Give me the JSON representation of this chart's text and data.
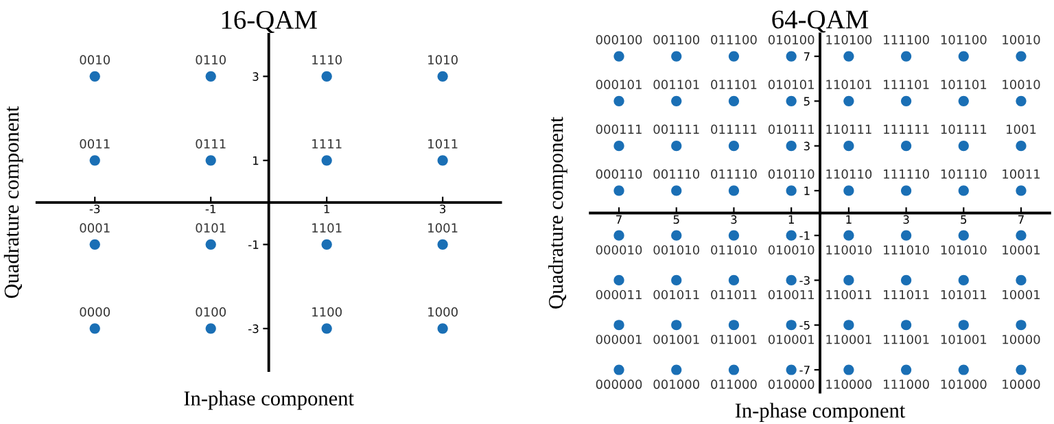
{
  "chart_data": [
    {
      "type": "scatter",
      "title": "16-QAM",
      "xlabel": "In-phase component",
      "ylabel": "Quadrature component",
      "marker": "circle",
      "grid": false,
      "xlim": [
        -4,
        4
      ],
      "ylim": [
        -4,
        4
      ],
      "xticks": [
        -3,
        -1,
        1,
        3
      ],
      "yticks": [
        -3,
        -1,
        1,
        3
      ],
      "series": [
        {
          "color": "#1a6fb5",
          "x": [
            -3,
            -1,
            1,
            3,
            -3,
            -1,
            1,
            3,
            -3,
            -1,
            1,
            3,
            -3,
            -1,
            1,
            3
          ],
          "values": [
            3,
            3,
            3,
            3,
            1,
            1,
            1,
            1,
            -1,
            -1,
            -1,
            -1,
            -3,
            -3,
            -3,
            -3
          ]
        }
      ],
      "annotations": [
        {
          "text": "0010",
          "x": -3,
          "y": 3
        },
        {
          "text": "0110",
          "x": -1,
          "y": 3
        },
        {
          "text": "1110",
          "x": 1,
          "y": 3
        },
        {
          "text": "1010",
          "x": 3,
          "y": 3
        },
        {
          "text": "0011",
          "x": -3,
          "y": 1
        },
        {
          "text": "0111",
          "x": -1,
          "y": 1
        },
        {
          "text": "1111",
          "x": 1,
          "y": 1
        },
        {
          "text": "1011",
          "x": 3,
          "y": 1
        },
        {
          "text": "0001",
          "x": -3,
          "y": -1
        },
        {
          "text": "0101",
          "x": -1,
          "y": -1
        },
        {
          "text": "1101",
          "x": 1,
          "y": -1
        },
        {
          "text": "1001",
          "x": 3,
          "y": -1
        },
        {
          "text": "0000",
          "x": -3,
          "y": -3
        },
        {
          "text": "0100",
          "x": -1,
          "y": -3
        },
        {
          "text": "1100",
          "x": 1,
          "y": -3
        },
        {
          "text": "1000",
          "x": 3,
          "y": -3
        }
      ]
    },
    {
      "type": "scatter",
      "title": "64-QAM",
      "xlabel": "In-phase component",
      "ylabel": "Quadrature component",
      "marker": "circle",
      "grid": false,
      "xlim": [
        -8,
        8
      ],
      "ylim": [
        -8,
        8
      ],
      "xticks": [
        {
          "value": -7,
          "label": "7"
        },
        {
          "value": -5,
          "label": "5"
        },
        {
          "value": -3,
          "label": "3"
        },
        {
          "value": -1,
          "label": "1"
        },
        1,
        3,
        5,
        7
      ],
      "yticks": [
        -7,
        -5,
        -3,
        -1,
        1,
        3,
        5,
        7
      ],
      "series": [
        {
          "color": "#1a6fb5",
          "x": [
            -7,
            -5,
            -3,
            -1,
            1,
            3,
            5,
            7,
            -7,
            -5,
            -3,
            -1,
            1,
            3,
            5,
            7,
            -7,
            -5,
            -3,
            -1,
            1,
            3,
            5,
            7,
            -7,
            -5,
            -3,
            -1,
            1,
            3,
            5,
            7,
            -7,
            -5,
            -3,
            -1,
            1,
            3,
            5,
            7,
            -7,
            -5,
            -3,
            -1,
            1,
            3,
            5,
            7,
            -7,
            -5,
            -3,
            -1,
            1,
            3,
            5,
            7,
            -7,
            -5,
            -3,
            -1,
            1,
            3,
            5,
            7
          ],
          "values": [
            7,
            7,
            7,
            7,
            7,
            7,
            7,
            7,
            5,
            5,
            5,
            5,
            5,
            5,
            5,
            5,
            3,
            3,
            3,
            3,
            3,
            3,
            3,
            3,
            1,
            1,
            1,
            1,
            1,
            1,
            1,
            1,
            -1,
            -1,
            -1,
            -1,
            -1,
            -1,
            -1,
            -1,
            -3,
            -3,
            -3,
            -3,
            -3,
            -3,
            -3,
            -3,
            -5,
            -5,
            -5,
            -5,
            -5,
            -5,
            -5,
            -5,
            -7,
            -7,
            -7,
            -7,
            -7,
            -7,
            -7,
            -7
          ]
        }
      ],
      "annotations": [
        {
          "text": "000100",
          "x": -7,
          "y": 7
        },
        {
          "text": "001100",
          "x": -5,
          "y": 7
        },
        {
          "text": "011100",
          "x": -3,
          "y": 7
        },
        {
          "text": "010100",
          "x": -1,
          "y": 7
        },
        {
          "text": "110100",
          "x": 1,
          "y": 7
        },
        {
          "text": "111100",
          "x": 3,
          "y": 7
        },
        {
          "text": "101100",
          "x": 5,
          "y": 7
        },
        {
          "text": "10010",
          "x": 7,
          "y": 7
        },
        {
          "text": "000101",
          "x": -7,
          "y": 5
        },
        {
          "text": "001101",
          "x": -5,
          "y": 5
        },
        {
          "text": "011101",
          "x": -3,
          "y": 5
        },
        {
          "text": "010101",
          "x": -1,
          "y": 5
        },
        {
          "text": "110101",
          "x": 1,
          "y": 5
        },
        {
          "text": "111101",
          "x": 3,
          "y": 5
        },
        {
          "text": "101101",
          "x": 5,
          "y": 5
        },
        {
          "text": "10010",
          "x": 7,
          "y": 5
        },
        {
          "text": "000111",
          "x": -7,
          "y": 3
        },
        {
          "text": "001111",
          "x": -5,
          "y": 3
        },
        {
          "text": "011111",
          "x": -3,
          "y": 3
        },
        {
          "text": "010111",
          "x": -1,
          "y": 3
        },
        {
          "text": "110111",
          "x": 1,
          "y": 3
        },
        {
          "text": "111111",
          "x": 3,
          "y": 3
        },
        {
          "text": "101111",
          "x": 5,
          "y": 3
        },
        {
          "text": "1001",
          "x": 7,
          "y": 3
        },
        {
          "text": "000110",
          "x": -7,
          "y": 1
        },
        {
          "text": "001110",
          "x": -5,
          "y": 1
        },
        {
          "text": "011110",
          "x": -3,
          "y": 1
        },
        {
          "text": "010110",
          "x": -1,
          "y": 1
        },
        {
          "text": "110110",
          "x": 1,
          "y": 1
        },
        {
          "text": "111110",
          "x": 3,
          "y": 1
        },
        {
          "text": "101110",
          "x": 5,
          "y": 1
        },
        {
          "text": "10011",
          "x": 7,
          "y": 1
        },
        {
          "text": "000010",
          "x": -7,
          "y": -1
        },
        {
          "text": "001010",
          "x": -5,
          "y": -1
        },
        {
          "text": "011010",
          "x": -3,
          "y": -1
        },
        {
          "text": "010010",
          "x": -1,
          "y": -1
        },
        {
          "text": "110010",
          "x": 1,
          "y": -1
        },
        {
          "text": "111010",
          "x": 3,
          "y": -1
        },
        {
          "text": "101010",
          "x": 5,
          "y": -1
        },
        {
          "text": "10001",
          "x": 7,
          "y": -1
        },
        {
          "text": "000011",
          "x": -7,
          "y": -3
        },
        {
          "text": "001011",
          "x": -5,
          "y": -3
        },
        {
          "text": "011011",
          "x": -3,
          "y": -3
        },
        {
          "text": "010011",
          "x": -1,
          "y": -3
        },
        {
          "text": "110011",
          "x": 1,
          "y": -3
        },
        {
          "text": "111011",
          "x": 3,
          "y": -3
        },
        {
          "text": "101011",
          "x": 5,
          "y": -3
        },
        {
          "text": "10001",
          "x": 7,
          "y": -3
        },
        {
          "text": "000001",
          "x": -7,
          "y": -5
        },
        {
          "text": "001001",
          "x": -5,
          "y": -5
        },
        {
          "text": "011001",
          "x": -3,
          "y": -5
        },
        {
          "text": "010001",
          "x": -1,
          "y": -5
        },
        {
          "text": "110001",
          "x": 1,
          "y": -5
        },
        {
          "text": "111001",
          "x": 3,
          "y": -5
        },
        {
          "text": "101001",
          "x": 5,
          "y": -5
        },
        {
          "text": "10000",
          "x": 7,
          "y": -5
        },
        {
          "text": "000000",
          "x": -7,
          "y": -7
        },
        {
          "text": "001000",
          "x": -5,
          "y": -7
        },
        {
          "text": "011000",
          "x": -3,
          "y": -7
        },
        {
          "text": "010000",
          "x": -1,
          "y": -7
        },
        {
          "text": "110000",
          "x": 1,
          "y": -7
        },
        {
          "text": "111000",
          "x": 3,
          "y": -7
        },
        {
          "text": "101000",
          "x": 5,
          "y": -7
        },
        {
          "text": "10000",
          "x": 7,
          "y": -7
        }
      ]
    }
  ]
}
